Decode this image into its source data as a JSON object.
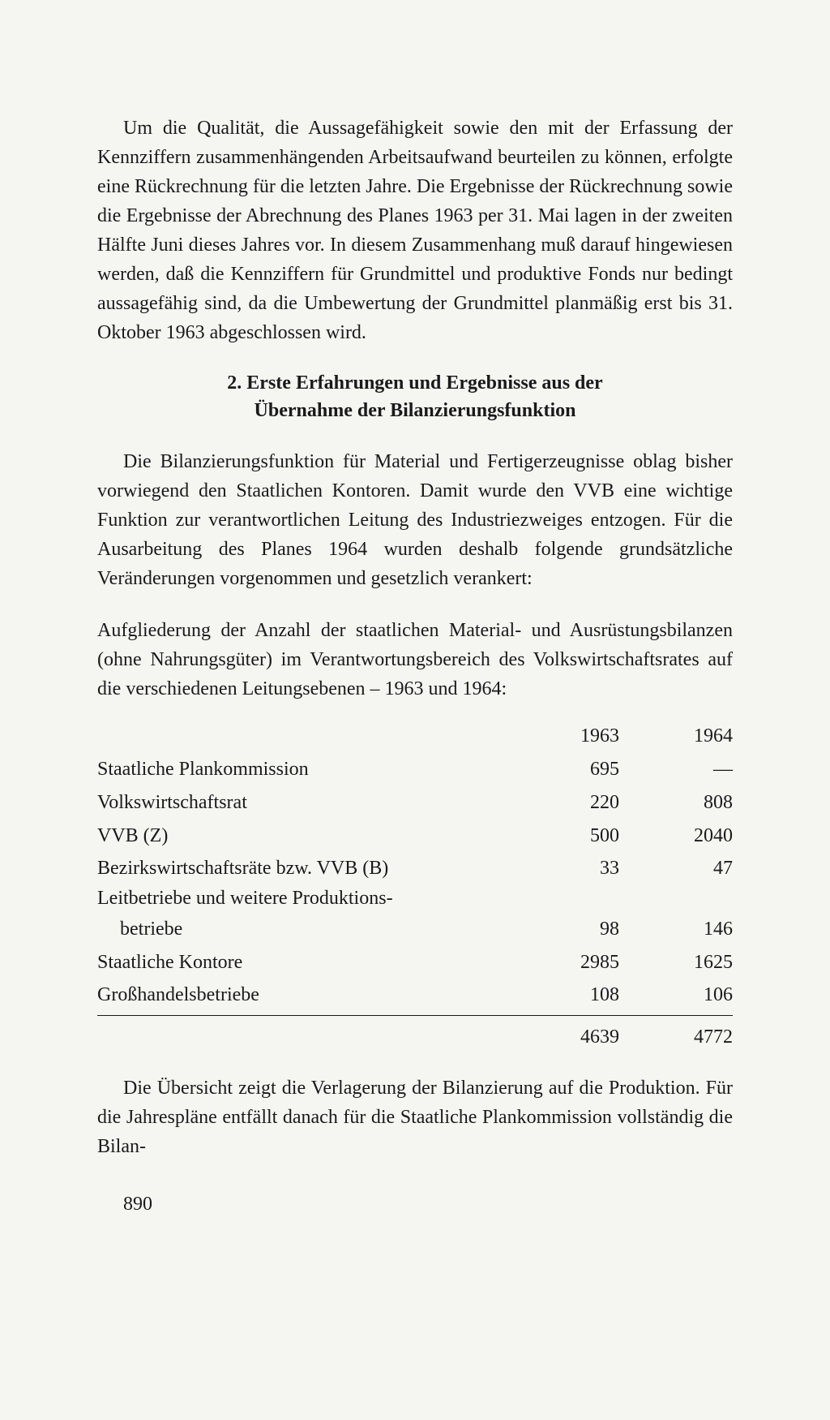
{
  "paragraph1": "Um die Qualität, die Aussagefähigkeit sowie den mit der Erfassung der Kennziffern zusammenhängenden Arbeitsaufwand beurteilen zu können, erfolgte eine Rückrechnung für die letzten Jahre. Die Ergebnisse der Rückrechnung sowie die Ergebnisse der Abrechnung des Planes 1963 per 31. Mai lagen in der zweiten Hälfte Juni dieses Jahres vor. In diesem Zusammenhang muß darauf hingewiesen werden, daß die Kennziffern für Grundmittel und produktive Fonds nur bedingt aussagefähig sind, da die Umbewertung der Grundmittel planmäßig erst bis 31. Oktober 1963 abgeschlossen wird.",
  "heading_line1": "2.  Erste Erfahrungen und Ergebnisse aus der",
  "heading_line2": "Übernahme der Bilanzierungsfunktion",
  "paragraph2": "Die Bilanzierungsfunktion für Material und Fertigerzeugnisse oblag bisher vorwiegend den Staatlichen Kontoren. Damit wurde den VVB eine wichtige Funktion zur verantwortlichen Leitung des Industriezweiges entzogen. Für die Ausarbeitung des Planes 1964 wurden deshalb folgende grundsätzliche Veränderungen vorgenommen und gesetzlich verankert:",
  "paragraph3": "Aufgliederung der Anzahl der staatlichen Material- und Ausrüstungsbilanzen (ohne Nahrungsgüter) im Verantwortungsbereich des Volkswirtschaftsrates auf die verschiedenen Leitungsebenen – 1963 und 1964:",
  "table": {
    "header": {
      "col1": "1963",
      "col2": "1964"
    },
    "rows": [
      {
        "label": "Staatliche Plankommission",
        "col1": "695",
        "col2": "—"
      },
      {
        "label": "Volkswirtschaftsrat",
        "col1": "220",
        "col2": "808"
      },
      {
        "label": "VVB (Z)",
        "col1": "500",
        "col2": "2040"
      },
      {
        "label": "Bezirkswirtschaftsräte bzw. VVB (B)",
        "col1": "33",
        "col2": "47"
      },
      {
        "label_line1": "Leitbetriebe und weitere Produktions-",
        "label_line2": "betriebe",
        "col1": "98",
        "col2": "146",
        "multi": true
      },
      {
        "label": "Staatliche Kontore",
        "col1": "2985",
        "col2": "1625"
      },
      {
        "label": "Großhandelsbetriebe",
        "col1": "108",
        "col2": "106"
      }
    ],
    "total": {
      "col1": "4639",
      "col2": "4772"
    }
  },
  "paragraph4": "Die Übersicht zeigt die Verlagerung der Bilanzierung auf die Produktion. Für die Jahrespläne entfällt danach für die Staatliche Plankommission vollständig die Bilan-",
  "page_number": "890"
}
